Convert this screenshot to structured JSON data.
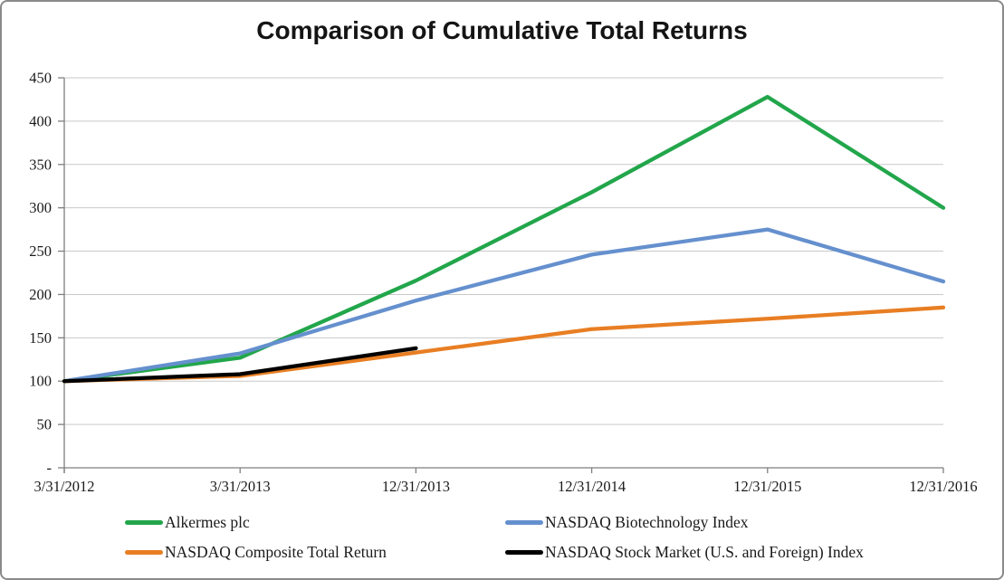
{
  "chart_data": {
    "type": "line",
    "title": "Comparison of Cumulative Total Returns",
    "categories": [
      "3/31/2012",
      "3/31/2013",
      "12/31/2013",
      "12/31/2014",
      "12/31/2015",
      "12/31/2016"
    ],
    "series": [
      {
        "name": "Alkermes plc",
        "color": "#22a64b",
        "values": [
          100,
          127,
          216,
          318,
          428,
          300
        ]
      },
      {
        "name": "NASDAQ Biotechnology Index",
        "color": "#6590ce",
        "values": [
          100,
          132,
          193,
          246,
          275,
          215
        ]
      },
      {
        "name": "NASDAQ Composite Total Return",
        "color": "#e87e23",
        "values": [
          100,
          106,
          133,
          160,
          172,
          185
        ]
      },
      {
        "name": "NASDAQ Stock Market (U.S. and Foreign) Index",
        "color": "#000000",
        "values": [
          100,
          108,
          138,
          null,
          null,
          null
        ]
      }
    ],
    "ylim": [
      0,
      450
    ],
    "yticks": [
      {
        "value": 450,
        "label": "450"
      },
      {
        "value": 400,
        "label": "400"
      },
      {
        "value": 350,
        "label": "350"
      },
      {
        "value": 300,
        "label": "300"
      },
      {
        "value": 250,
        "label": "250"
      },
      {
        "value": 200,
        "label": "200"
      },
      {
        "value": 150,
        "label": "150"
      },
      {
        "value": 100,
        "label": "100"
      },
      {
        "value": 50,
        "label": "50"
      },
      {
        "value": 0,
        "label": "-"
      }
    ],
    "grid": true,
    "legend_position": "bottom",
    "colors": {
      "background": "#ffffff",
      "gridline": "#c9c9c9",
      "axis": "#7f7f7f",
      "tick_text": "#1a1a1a",
      "frame_border": "#8a8a8a"
    }
  }
}
